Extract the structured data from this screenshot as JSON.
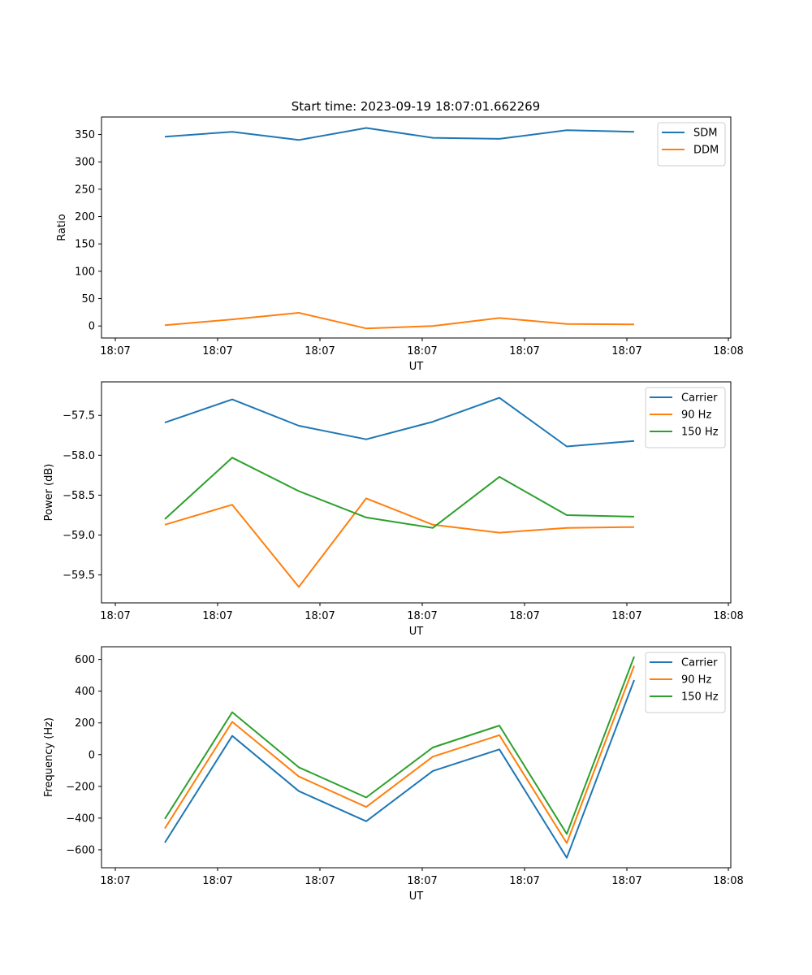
{
  "figure_title": "Start time: 2023-09-19 18:07:01.662269",
  "colors": {
    "blue": "#1f77b4",
    "orange": "#ff7f0e",
    "green": "#2ca02c"
  },
  "chart_data": [
    {
      "type": "line",
      "title": "Start time: 2023-09-19 18:07:01.662269",
      "xlabel": "UT",
      "ylabel": "Ratio",
      "x_tick_labels": [
        "18:07",
        "18:07",
        "18:07",
        "18:07",
        "18:07",
        "18:07",
        "18:07"
      ],
      "x_last_tick_label": "18:08",
      "y_ticks": [
        0,
        50,
        100,
        150,
        200,
        250,
        300,
        350
      ],
      "ylim": [
        -22,
        382
      ],
      "legend_position": "top-right",
      "series": [
        {
          "name": "SDM",
          "color": "#1f77b4",
          "values": [
            346,
            355,
            340,
            362,
            344,
            342,
            358,
            355
          ]
        },
        {
          "name": "DDM",
          "color": "#ff7f0e",
          "values": [
            1.5,
            12,
            24,
            -4.5,
            0,
            14.5,
            3.5,
            3
          ]
        }
      ]
    },
    {
      "type": "line",
      "title": "",
      "xlabel": "UT",
      "ylabel": "Power (dB)",
      "x_tick_labels": [
        "18:07",
        "18:07",
        "18:07",
        "18:07",
        "18:07",
        "18:07",
        "18:07"
      ],
      "x_last_tick_label": "18:08",
      "y_ticks": [
        -59.5,
        -59.0,
        -58.5,
        -58.0,
        -57.5
      ],
      "y_tick_labels": [
        "−59.5",
        "−59.0",
        "−58.5",
        "−58.0",
        "−57.5"
      ],
      "ylim": [
        -59.85,
        -57.08
      ],
      "legend_position": "top-right",
      "series": [
        {
          "name": "Carrier",
          "color": "#1f77b4",
          "values": [
            -57.59,
            -57.3,
            -57.63,
            -57.8,
            -57.58,
            -57.28,
            -57.89,
            -57.82
          ]
        },
        {
          "name": "90 Hz",
          "color": "#ff7f0e",
          "values": [
            -58.87,
            -58.62,
            -59.65,
            -58.54,
            -58.87,
            -58.97,
            -58.91,
            -58.9
          ]
        },
        {
          "name": "150 Hz",
          "color": "#2ca02c",
          "values": [
            -58.8,
            -58.03,
            -58.45,
            -58.78,
            -58.91,
            -58.27,
            -58.75,
            -58.77
          ]
        }
      ]
    },
    {
      "type": "line",
      "title": "",
      "xlabel": "UT",
      "ylabel": "Frequency (Hz)",
      "x_tick_labels": [
        "18:07",
        "18:07",
        "18:07",
        "18:07",
        "18:07",
        "18:07",
        "18:07"
      ],
      "x_last_tick_label": "18:08",
      "y_ticks": [
        -600,
        -400,
        -200,
        0,
        200,
        400,
        600
      ],
      "y_tick_labels": [
        "−600",
        "−400",
        "−200",
        "0",
        "200",
        "400",
        "600"
      ],
      "ylim": [
        -713,
        680
      ],
      "legend_position": "top-right",
      "series": [
        {
          "name": "Carrier",
          "color": "#1f77b4",
          "values": [
            -555,
            118,
            -230,
            -420,
            -103,
            33,
            -650,
            470
          ]
        },
        {
          "name": "90 Hz",
          "color": "#ff7f0e",
          "values": [
            -465,
            207,
            -138,
            -330,
            -13,
            123,
            -558,
            560
          ]
        },
        {
          "name": "150 Hz",
          "color": "#2ca02c",
          "values": [
            -405,
            267,
            -80,
            -270,
            45,
            183,
            -500,
            618
          ]
        }
      ]
    }
  ]
}
